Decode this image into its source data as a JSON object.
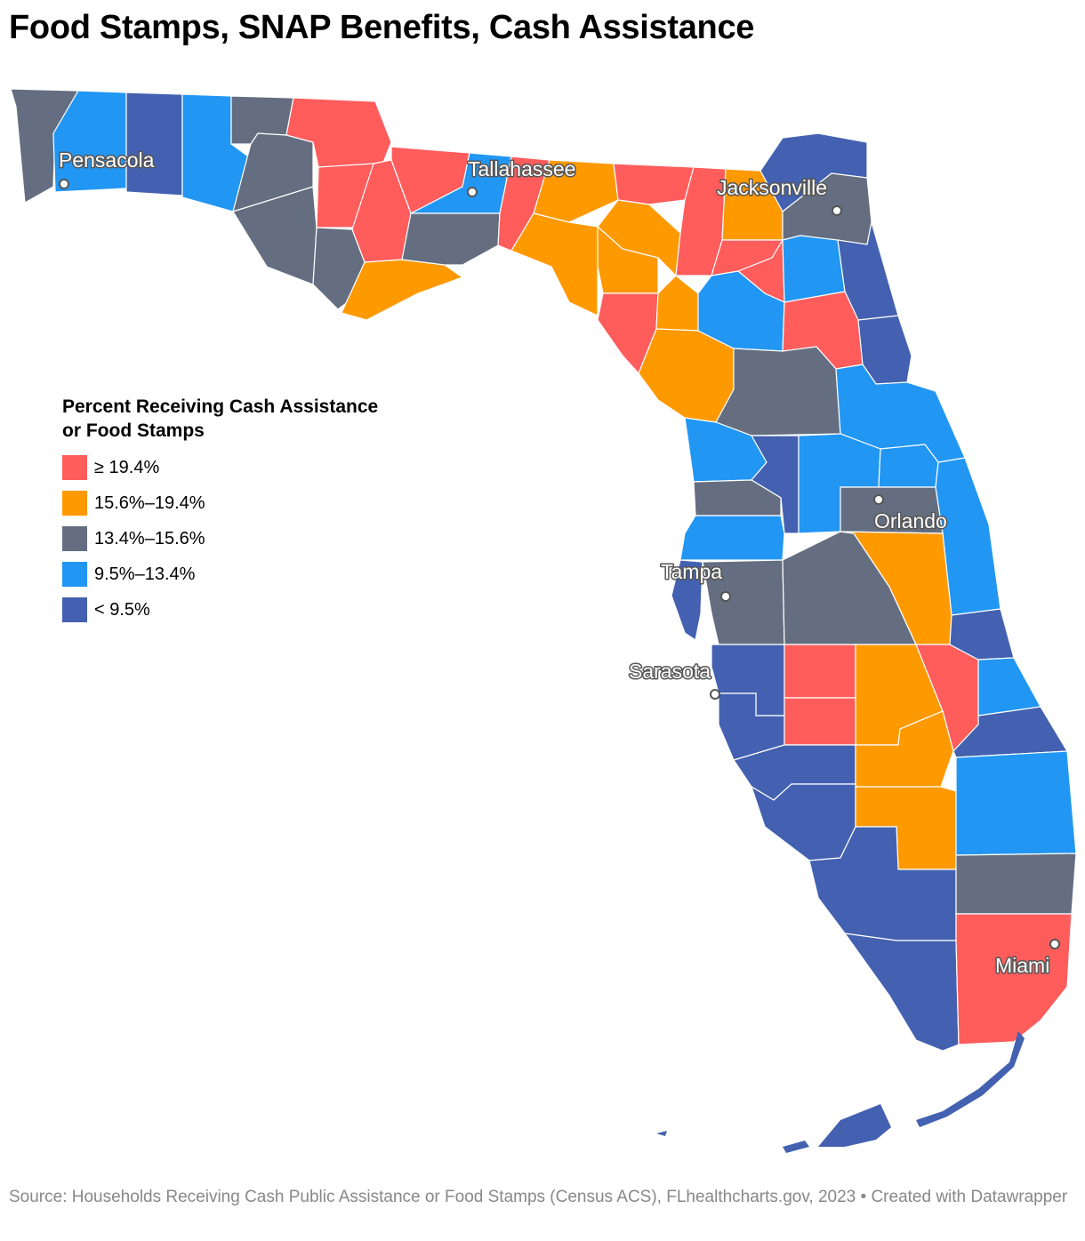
{
  "title": "Food Stamps, SNAP Benefits, Cash Assistance",
  "legend": {
    "title_line1": "Percent Receiving Cash Assistance",
    "title_line2": "or Food Stamps",
    "items": [
      {
        "label": "≥ 19.4%",
        "color": "#ff5c5c"
      },
      {
        "label": "15.6%–19.4%",
        "color": "#ff9900"
      },
      {
        "label": "13.4%–15.6%",
        "color": "#646e80"
      },
      {
        "label": "9.5%–13.4%",
        "color": "#2196f3"
      },
      {
        "label": "< 9.5%",
        "color": "#4361b0"
      }
    ]
  },
  "cities": [
    {
      "name": "Pensacola"
    },
    {
      "name": "Tallahassee"
    },
    {
      "name": "Jacksonville"
    },
    {
      "name": "Orlando"
    },
    {
      "name": "Tampa"
    },
    {
      "name": "Sarasota"
    },
    {
      "name": "Miami"
    }
  ],
  "source": "Source: Households Receiving Cash Public Assistance or Food Stamps (Census ACS), FLhealthcharts.gov, 2023 • Created with Datawrapper"
}
